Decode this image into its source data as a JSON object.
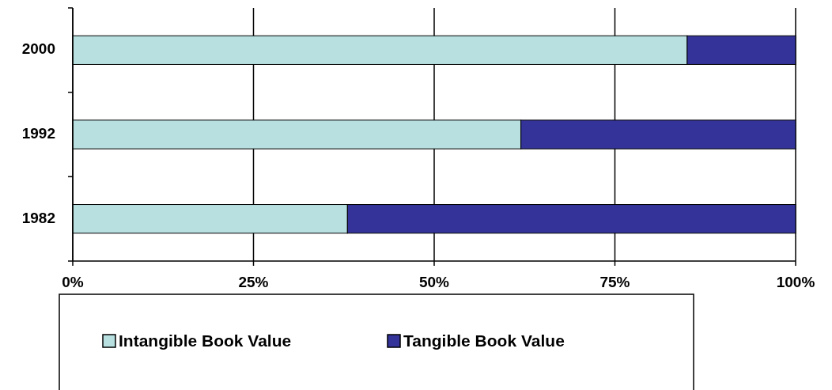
{
  "chart_data": {
    "type": "bar",
    "orientation": "horizontal",
    "stacked": true,
    "categories": [
      "2000",
      "1992",
      "1982"
    ],
    "series": [
      {
        "name": "Intangible Book Value",
        "color": "#b8e0e0",
        "values": [
          85,
          62,
          38
        ]
      },
      {
        "name": "Tangible Book Value",
        "color": "#333399",
        "values": [
          15,
          38,
          62
        ]
      }
    ],
    "xlim": [
      0,
      100
    ],
    "xticks": [
      {
        "value": 0,
        "label": "0%"
      },
      {
        "value": 25,
        "label": "25%"
      },
      {
        "value": 50,
        "label": "50%"
      },
      {
        "value": 75,
        "label": "75%"
      },
      {
        "value": 100,
        "label": "100%"
      }
    ],
    "grid": "x",
    "legend": "bottom"
  }
}
